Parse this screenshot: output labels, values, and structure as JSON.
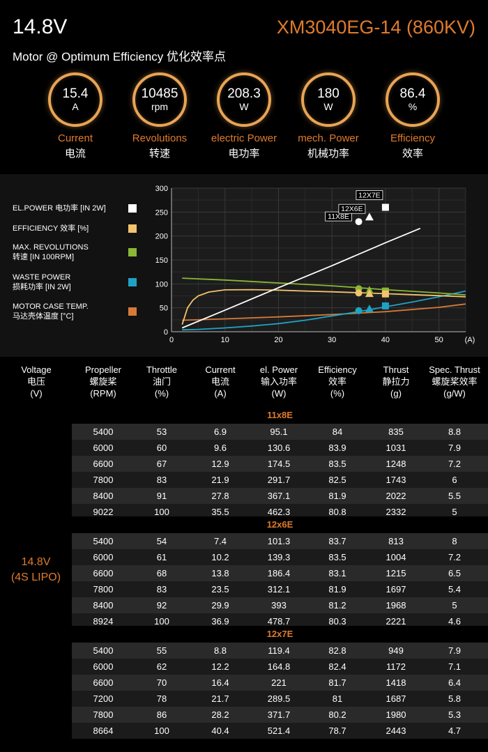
{
  "header": {
    "voltage": "14.8V",
    "model": "XM3040EG-14 (860KV)",
    "subtitle": "Motor @ Optimum Efficiency  优化效率点",
    "stats": [
      {
        "value": "15.4",
        "unit": "A",
        "label_en": "Current",
        "label_cn": "电流"
      },
      {
        "value": "10485",
        "unit": "rpm",
        "label_en": "Revolutions",
        "label_cn": "转速"
      },
      {
        "value": "208.3",
        "unit": "W",
        "label_en": "electric Power",
        "label_cn": "电功率"
      },
      {
        "value": "180",
        "unit": "W",
        "label_en": "mech. Power",
        "label_cn": "机械功率"
      },
      {
        "value": "86.4",
        "unit": "%",
        "label_en": "Efficiency",
        "label_cn": "效率"
      }
    ]
  },
  "legend": [
    {
      "line1": "EL.POWER 电功率 [IN 2W]",
      "line2": "",
      "color": "#ffffff"
    },
    {
      "line1": "EFFICIENCY 效率 [%]",
      "line2": "",
      "color": "#f2c46e"
    },
    {
      "line1": "MAX. REVOLUTIONS",
      "line2": "转速 [IN 100RPM]",
      "color": "#8bb735"
    },
    {
      "line1": "WASTE POWER",
      "line2": "损耗功率 [IN 2W]",
      "color": "#1fa3c4"
    },
    {
      "line1": "MOTOR CASE TEMP.",
      "line2": "马达壳体温度 [°C]",
      "color": "#d67a38"
    }
  ],
  "chart_data": {
    "type": "line",
    "xlabel": "(A)",
    "xlim": [
      0,
      55
    ],
    "ylim": [
      0,
      300
    ],
    "x_ticks": [
      0,
      10,
      20,
      30,
      40,
      50
    ],
    "y_ticks": [
      0,
      50,
      100,
      150,
      200,
      250,
      300
    ],
    "grid": true,
    "series": [
      {
        "key": "el_power",
        "color": "#ffffff",
        "x": [
          2,
          10,
          20,
          30,
          40,
          46.5
        ],
        "y": [
          8,
          45,
          92,
          138,
          186,
          216
        ]
      },
      {
        "key": "efficiency",
        "color": "#f2c46e",
        "x": [
          2,
          3,
          4,
          5,
          7,
          10,
          15,
          20,
          25,
          30,
          35,
          40,
          45,
          50,
          55
        ],
        "y": [
          15,
          50,
          66,
          75,
          83,
          87.5,
          88,
          87,
          85,
          83.5,
          81.5,
          79.5,
          77.5,
          75.5,
          73
        ]
      },
      {
        "key": "revolutions",
        "color": "#8bb735",
        "x": [
          2,
          10,
          20,
          30,
          40,
          50,
          55
        ],
        "y": [
          112,
          108,
          102,
          96,
          88,
          81,
          77
        ]
      },
      {
        "key": "waste_power",
        "color": "#1fa3c4",
        "x": [
          2,
          5,
          10,
          15,
          20,
          25,
          30,
          35,
          40,
          45,
          50,
          55
        ],
        "y": [
          4,
          5,
          8,
          12,
          17,
          24,
          33,
          42,
          52,
          62,
          73,
          85
        ]
      },
      {
        "key": "case_temp",
        "color": "#d67a38",
        "x": [
          2,
          10,
          20,
          30,
          40,
          50,
          55
        ],
        "y": [
          24,
          27,
          31,
          36,
          42,
          51,
          58
        ]
      }
    ],
    "propeller_points": [
      {
        "label": "11X8E",
        "x": 35,
        "shape": "circle",
        "el_power": 230,
        "efficiency": 81,
        "revolutions": 90,
        "waste_power": 44
      },
      {
        "label": "12X6E",
        "x": 37,
        "shape": "triangle",
        "el_power": 240,
        "efficiency": 80,
        "revolutions": 87,
        "waste_power": 48
      },
      {
        "label": "12X7E",
        "x": 40,
        "shape": "square",
        "el_power": 260,
        "efficiency": 79,
        "revolutions": 85,
        "waste_power": 54
      }
    ]
  },
  "table": {
    "headers": [
      {
        "l1": "Voltage",
        "l2": "电压",
        "l3": "(V)"
      },
      {
        "l1": "Propeller",
        "l2": "螺旋桨",
        "l3": "(RPM)"
      },
      {
        "l1": "Throttle",
        "l2": "油门",
        "l3": "(%)"
      },
      {
        "l1": "Current",
        "l2": "电流",
        "l3": "(A)"
      },
      {
        "l1": "el. Power",
        "l2": "输入功率",
        "l3": "(W)"
      },
      {
        "l1": "Efficiency",
        "l2": "效率",
        "l3": "(%)"
      },
      {
        "l1": "Thrust",
        "l2": "静拉力",
        "l3": "(g)"
      },
      {
        "l1": "Spec. Thrust",
        "l2": "螺旋桨效率",
        "l3": "(g/W)"
      }
    ],
    "voltage_line1": "14.8V",
    "voltage_line2": "(4S LIPO)",
    "groups": [
      {
        "title": "11x8E",
        "rows": [
          [
            "5400",
            "53",
            "6.9",
            "95.1",
            "84",
            "835",
            "8.8"
          ],
          [
            "6000",
            "60",
            "9.6",
            "130.6",
            "83.9",
            "1031",
            "7.9"
          ],
          [
            "6600",
            "67",
            "12.9",
            "174.5",
            "83.5",
            "1248",
            "7.2"
          ],
          [
            "7800",
            "83",
            "21.9",
            "291.7",
            "82.5",
            "1743",
            "6"
          ],
          [
            "8400",
            "91",
            "27.8",
            "367.1",
            "81.9",
            "2022",
            "5.5"
          ],
          [
            "9022",
            "100",
            "35.5",
            "462.3",
            "80.8",
            "2332",
            "5"
          ]
        ]
      },
      {
        "title": "12x6E",
        "rows": [
          [
            "5400",
            "54",
            "7.4",
            "101.3",
            "83.7",
            "813",
            "8"
          ],
          [
            "6000",
            "61",
            "10.2",
            "139.3",
            "83.5",
            "1004",
            "7.2"
          ],
          [
            "6600",
            "68",
            "13.8",
            "186.4",
            "83.1",
            "1215",
            "6.5"
          ],
          [
            "7800",
            "83",
            "23.5",
            "312.1",
            "81.9",
            "1697",
            "5.4"
          ],
          [
            "8400",
            "92",
            "29.9",
            "393",
            "81.2",
            "1968",
            "5"
          ],
          [
            "8924",
            "100",
            "36.9",
            "478.7",
            "80.3",
            "2221",
            "4.6"
          ]
        ]
      },
      {
        "title": "12x7E",
        "rows": [
          [
            "5400",
            "55",
            "8.8",
            "119.4",
            "82.8",
            "949",
            "7.9"
          ],
          [
            "6000",
            "62",
            "12.2",
            "164.8",
            "82.4",
            "1172",
            "7.1"
          ],
          [
            "6600",
            "70",
            "16.4",
            "221",
            "81.7",
            "1418",
            "6.4"
          ],
          [
            "7200",
            "78",
            "21.7",
            "289.5",
            "81",
            "1687",
            "5.8"
          ],
          [
            "7800",
            "86",
            "28.2",
            "371.7",
            "80.2",
            "1980",
            "5.3"
          ],
          [
            "8664",
            "100",
            "40.4",
            "521.4",
            "78.7",
            "2443",
            "4.7"
          ]
        ]
      }
    ]
  }
}
